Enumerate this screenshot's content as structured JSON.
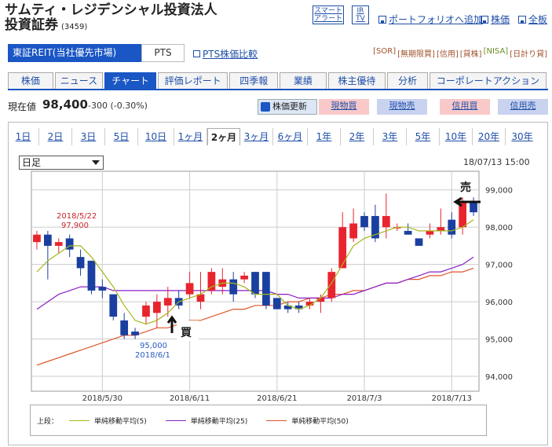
{
  "header": {
    "name_line1": "サムティ・レジデンシャル投資法人",
    "name_line2": "投資証券",
    "code": "(3459)",
    "smart_alert": "スマート\nアラート",
    "ir_tv": "IR\nTV",
    "links": [
      "ポートフォリオへ追加",
      "株価",
      "全板"
    ]
  },
  "market_tabs": {
    "active": "東証REIT(当社優先市場)",
    "other": "PTS",
    "pts_compare": "PTS株価比較"
  },
  "badges": [
    "[SOR]",
    "[無期限買]",
    "[信用]",
    "[貸株]",
    "[NISA]",
    "[日計り貸]"
  ],
  "badge_colors": {
    "nisa": "#6b8e23",
    "default": "#a0522d"
  },
  "nav": [
    "株価",
    "ニュース",
    "チャート",
    "評価レポート",
    "四季報",
    "業績",
    "株主優待",
    "分析",
    "コーポレートアクション"
  ],
  "nav_active": "チャート",
  "price": {
    "label": "現在値",
    "value": "98,400",
    "change": "-300 (-0.30%)"
  },
  "buttons": {
    "refresh": "株価更新",
    "spot_buy": "現物買",
    "spot_sell": "現物売",
    "margin_buy": "信用買",
    "margin_sell": "信用売"
  },
  "colors": {
    "accent": "#1a56c4",
    "up_candle": "#e8242e",
    "down_candle": "#1a3fa0",
    "ma5": "#a6b61c",
    "ma25": "#8b1fc7",
    "ma50": "#e0552a",
    "buy_btn_bg": "#f9c9c9",
    "sell_btn_bg": "#c9d3f0"
  },
  "periods": [
    "1日",
    "2日",
    "3日",
    "5日",
    "10日",
    "1ヶ月",
    "2ヶ月",
    "3ヶ月",
    "6ヶ月",
    "1年",
    "2年",
    "3年",
    "5年",
    "10年",
    "20年",
    "30年"
  ],
  "period_active": "2ヶ月",
  "interval": "日足",
  "timestamp": "18/07/13 15:00",
  "annotations": {
    "high_date": "2018/5/22",
    "high_value": "97,900",
    "low_value": "95,000",
    "low_date": "2018/6/1",
    "buy_marker": "買",
    "sell_marker": "売"
  },
  "legend": {
    "prefix": "上段：",
    "items": [
      "単純移動平均(5)",
      "単純移動平均(25)",
      "単純移動平均(50)"
    ]
  },
  "chart_data": {
    "type": "candlestick",
    "y_ticks": [
      "99,000",
      "98,000",
      "97,000",
      "96,000",
      "95,000",
      "94,000"
    ],
    "y_tick_values": [
      99000,
      98000,
      97000,
      96000,
      95000,
      94000
    ],
    "ylim": [
      93600,
      99500
    ],
    "x_tick_labels": [
      "2018/5/30",
      "2018/6/11",
      "2018/6/21",
      "2018/7/3",
      "2018/7/13"
    ],
    "x_tick_index": [
      6,
      14,
      22,
      30,
      38
    ],
    "candles": [
      {
        "o": 97600,
        "h": 97900,
        "l": 97400,
        "c": 97800
      },
      {
        "o": 97800,
        "h": 97900,
        "l": 96600,
        "c": 97500
      },
      {
        "o": 97500,
        "h": 97700,
        "l": 97300,
        "c": 97600
      },
      {
        "o": 97700,
        "h": 97800,
        "l": 97200,
        "c": 97400
      },
      {
        "o": 97200,
        "h": 97400,
        "l": 96700,
        "c": 96900
      },
      {
        "o": 97100,
        "h": 97100,
        "l": 96200,
        "c": 96300
      },
      {
        "o": 96400,
        "h": 96600,
        "l": 96100,
        "c": 96300
      },
      {
        "o": 96200,
        "h": 96200,
        "l": 95500,
        "c": 95600
      },
      {
        "o": 95500,
        "h": 95700,
        "l": 95000,
        "c": 95100
      },
      {
        "o": 95200,
        "h": 95300,
        "l": 95000,
        "c": 95100
      },
      {
        "o": 95600,
        "h": 96000,
        "l": 95400,
        "c": 95900
      },
      {
        "o": 95700,
        "h": 96200,
        "l": 95300,
        "c": 96000
      },
      {
        "o": 95900,
        "h": 96400,
        "l": 95600,
        "c": 96100
      },
      {
        "o": 96100,
        "h": 96300,
        "l": 95800,
        "c": 95900
      },
      {
        "o": 96200,
        "h": 96800,
        "l": 96100,
        "c": 96500
      },
      {
        "o": 96000,
        "h": 96800,
        "l": 95800,
        "c": 96200
      },
      {
        "o": 96300,
        "h": 96900,
        "l": 96200,
        "c": 96800
      },
      {
        "o": 96400,
        "h": 96900,
        "l": 96200,
        "c": 96600
      },
      {
        "o": 96600,
        "h": 96800,
        "l": 96000,
        "c": 96200
      },
      {
        "o": 96600,
        "h": 96800,
        "l": 96500,
        "c": 96700
      },
      {
        "o": 96800,
        "h": 96800,
        "l": 96100,
        "c": 96200
      },
      {
        "o": 96800,
        "h": 96800,
        "l": 95800,
        "c": 95900
      },
      {
        "o": 96100,
        "h": 96100,
        "l": 95800,
        "c": 95800
      },
      {
        "o": 95900,
        "h": 96000,
        "l": 95700,
        "c": 95800
      },
      {
        "o": 95900,
        "h": 96000,
        "l": 95700,
        "c": 95800
      },
      {
        "o": 95900,
        "h": 96100,
        "l": 95800,
        "c": 96000
      },
      {
        "o": 96000,
        "h": 96200,
        "l": 95700,
        "c": 96100
      },
      {
        "o": 96100,
        "h": 96900,
        "l": 96000,
        "c": 96800
      },
      {
        "o": 96900,
        "h": 98400,
        "l": 96900,
        "c": 98000
      },
      {
        "o": 97700,
        "h": 98500,
        "l": 97600,
        "c": 98100
      },
      {
        "o": 98300,
        "h": 98400,
        "l": 97900,
        "c": 98000
      },
      {
        "o": 98300,
        "h": 98600,
        "l": 97600,
        "c": 97700
      },
      {
        "o": 98000,
        "h": 98900,
        "l": 97700,
        "c": 98300
      },
      {
        "o": 98000,
        "h": 98100,
        "l": 97900,
        "c": 98000
      },
      {
        "o": 97900,
        "h": 98100,
        "l": 97800,
        "c": 97800
      },
      {
        "o": 97700,
        "h": 97700,
        "l": 97500,
        "c": 97500
      },
      {
        "o": 97800,
        "h": 98100,
        "l": 97700,
        "c": 97900
      },
      {
        "o": 97900,
        "h": 98500,
        "l": 97800,
        "c": 98000
      },
      {
        "o": 98200,
        "h": 98400,
        "l": 97700,
        "c": 97800
      },
      {
        "o": 98000,
        "h": 98800,
        "l": 97800,
        "c": 98700
      },
      {
        "o": 98700,
        "h": 98800,
        "l": 98300,
        "c": 98400
      }
    ],
    "ma5": [
      96800,
      97100,
      97300,
      97500,
      97500,
      97200,
      96800,
      96400,
      95900,
      95500,
      95400,
      95500,
      95700,
      96000,
      96100,
      96200,
      96400,
      96500,
      96500,
      96400,
      96200,
      96200,
      96200,
      95900,
      95800,
      95900,
      96100,
      96500,
      97000,
      97500,
      97700,
      97800,
      97900,
      98000,
      98000,
      97900,
      97900,
      97900,
      97900,
      98000,
      98200
    ],
    "ma25": [
      95800,
      96000,
      96200,
      96300,
      96400,
      96400,
      96400,
      96300,
      96300,
      96300,
      96300,
      96300,
      96300,
      96300,
      96300,
      96300,
      96300,
      96300,
      96300,
      96300,
      96300,
      96300,
      96200,
      96200,
      96100,
      96100,
      96100,
      96100,
      96200,
      96200,
      96300,
      96400,
      96500,
      96500,
      96600,
      96700,
      96800,
      96800,
      96900,
      97000,
      97200
    ],
    "ma50": [
      94300,
      94400,
      94500,
      94600,
      94700,
      94800,
      94900,
      95000,
      95100,
      95100,
      95200,
      95300,
      95300,
      95400,
      95500,
      95500,
      95600,
      95700,
      95800,
      95800,
      95900,
      95900,
      95900,
      96000,
      96000,
      96100,
      96100,
      96200,
      96200,
      96300,
      96300,
      96400,
      96500,
      96500,
      96600,
      96600,
      96700,
      96700,
      96800,
      96800,
      96900
    ]
  }
}
